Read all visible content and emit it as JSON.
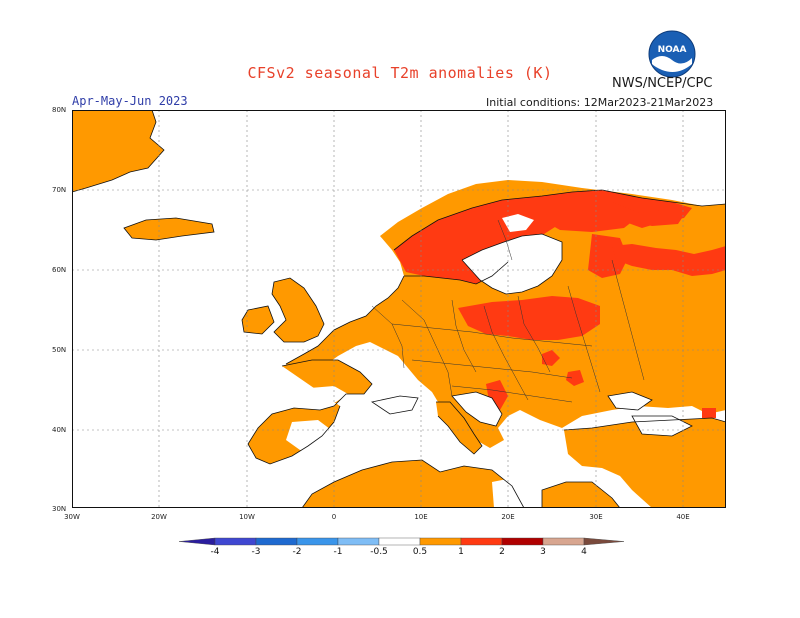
{
  "title": "CFSv2 seasonal T2m anomalies (K)",
  "organization": "NWS/NCEP/CPC",
  "logo_label": "NOAA",
  "season": "Apr-May-Jun 2023",
  "initial_conditions": "Initial conditions: 12Mar2023-21Mar2023",
  "lat_labels": [
    "80N",
    "70N",
    "60N",
    "50N",
    "40N",
    "30N"
  ],
  "lon_labels": [
    "30W",
    "20W",
    "10W",
    "0",
    "10E",
    "20E",
    "30E",
    "40E"
  ],
  "colorbar": {
    "labels": [
      "-4",
      "-3",
      "-2",
      "-1",
      "-0.5",
      "0.5",
      "1",
      "2",
      "3",
      "4"
    ],
    "colors": [
      "#2a1d9e",
      "#3f47d1",
      "#1e6ad0",
      "#3a95ea",
      "#7fbdf5",
      "#ffffff",
      "#ff9900",
      "#ff3a12",
      "#b00000",
      "#d8a690",
      "#7a4a3c"
    ]
  },
  "colors": {
    "anomaly_0_5_to_1": "#ff9900",
    "anomaly_1_to_2": "#ff3a12",
    "title": "#e8412a",
    "season": "#2f3da8"
  }
}
